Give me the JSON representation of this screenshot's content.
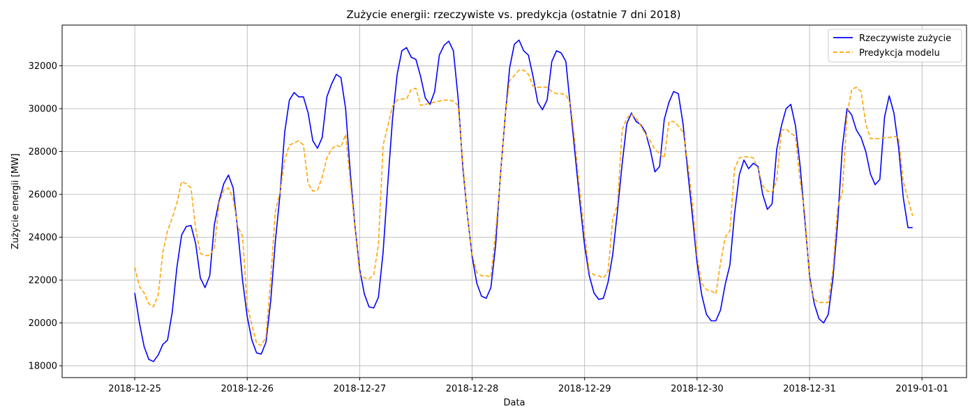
{
  "chart_data": {
    "type": "line",
    "title": "Zużycie energii: rzeczywiste vs. predykcja (ostatnie 7 dni 2018)",
    "xlabel": "Data",
    "ylabel": "Zużycie energii [MW]",
    "x_start": "2018-12-25 00:00",
    "x_step_hours": 1,
    "xlim": [
      "2018-12-24 08:30",
      "2019-01-01 09:30"
    ],
    "ylim": [
      17450,
      33900
    ],
    "x_ticks": [
      "2018-12-25",
      "2018-12-26",
      "2018-12-27",
      "2018-12-28",
      "2018-12-29",
      "2018-12-30",
      "2018-12-31",
      "2019-01-01"
    ],
    "y_ticks": [
      18000,
      20000,
      22000,
      24000,
      26000,
      28000,
      30000,
      32000
    ],
    "grid": true,
    "legend_position": "top-right",
    "colors": {
      "actual": "#0000ff",
      "predicted": "#ffa500"
    },
    "series": [
      {
        "name": "Rzeczywiste zużycie",
        "style": "solid",
        "values": [
          21400,
          20000,
          18900,
          18300,
          18200,
          18500,
          19000,
          19200,
          20500,
          22600,
          24100,
          24500,
          24550,
          23700,
          22100,
          21650,
          22200,
          24600,
          25700,
          26500,
          26900,
          26300,
          24300,
          22000,
          20300,
          19200,
          18600,
          18550,
          19100,
          21000,
          23800,
          26000,
          28900,
          30400,
          30750,
          30550,
          30550,
          29800,
          28500,
          28150,
          28650,
          30550,
          31150,
          31600,
          31450,
          30000,
          27000,
          24500,
          22500,
          21350,
          20750,
          20700,
          21200,
          23300,
          26500,
          29500,
          31600,
          32700,
          32850,
          32400,
          32300,
          31500,
          30500,
          30200,
          30800,
          32500,
          32950,
          33150,
          32700,
          30500,
          27300,
          25000,
          23100,
          21850,
          21250,
          21150,
          21650,
          23600,
          26800,
          29500,
          31900,
          33000,
          33200,
          32700,
          32500,
          31500,
          30300,
          29950,
          30400,
          32200,
          32700,
          32600,
          32200,
          30000,
          27800,
          25600,
          23600,
          22200,
          21400,
          21100,
          21150,
          21900,
          23200,
          25200,
          27400,
          29300,
          29800,
          29400,
          29250,
          28900,
          28100,
          27050,
          27300,
          29500,
          30300,
          30800,
          30700,
          29300,
          27100,
          25000,
          22800,
          21300,
          20400,
          20100,
          20100,
          20600,
          21800,
          22700,
          25100,
          26900,
          27600,
          27200,
          27450,
          27300,
          26000,
          25300,
          25550,
          28100,
          29200,
          30000,
          30200,
          29200,
          27300,
          24800,
          22200,
          20900,
          20200,
          20000,
          20400,
          22100,
          24700,
          28200,
          30000,
          29700,
          29000,
          28650,
          28000,
          26950,
          26450,
          26700,
          29600,
          30600,
          29800,
          28200,
          25850,
          24450,
          24450
        ]
      },
      {
        "name": "Predykcja modelu",
        "style": "dashed",
        "values": [
          22600,
          21700,
          21400,
          20900,
          20750,
          21300,
          23300,
          24300,
          24900,
          25600,
          26600,
          26500,
          26300,
          24400,
          23250,
          23150,
          23150,
          23500,
          25600,
          26200,
          26300,
          25800,
          24500,
          24050,
          20800,
          19900,
          19050,
          18950,
          19350,
          22000,
          25200,
          26100,
          27600,
          28300,
          28400,
          28500,
          28300,
          26500,
          26150,
          26200,
          26800,
          27700,
          28100,
          28300,
          28200,
          28800,
          26600,
          24400,
          22300,
          22100,
          22050,
          22250,
          23650,
          28300,
          29200,
          30100,
          30400,
          30450,
          30450,
          30900,
          30950,
          30150,
          30200,
          30250,
          30300,
          30350,
          30400,
          30400,
          30350,
          30150,
          27500,
          25000,
          23200,
          22350,
          22200,
          22200,
          22150,
          24200,
          26700,
          29600,
          31300,
          31550,
          31800,
          31800,
          31600,
          31050,
          31000,
          31000,
          31000,
          30800,
          30700,
          30700,
          30650,
          30200,
          28300,
          26100,
          24100,
          22400,
          22250,
          22200,
          22100,
          22400,
          24850,
          25500,
          29000,
          29550,
          29750,
          29550,
          29200,
          28800,
          28500,
          28100,
          27900,
          27700,
          29400,
          29400,
          29200,
          28900,
          27500,
          25600,
          23100,
          21850,
          21550,
          21500,
          21350,
          22800,
          24000,
          24300,
          27200,
          27700,
          27750,
          27750,
          27700,
          27200,
          26400,
          26150,
          26100,
          26650,
          29000,
          29050,
          28850,
          28700,
          26600,
          25100,
          22000,
          21100,
          20950,
          20950,
          20950,
          22500,
          25400,
          26100,
          29700,
          30900,
          31000,
          30800,
          29300,
          28600,
          28600,
          28600,
          28650,
          28650,
          28700,
          28650,
          26600,
          25800,
          25000
        ]
      }
    ]
  }
}
